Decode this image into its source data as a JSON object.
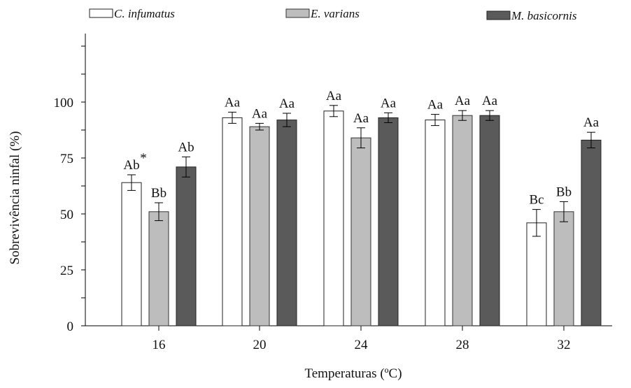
{
  "chart_data": {
    "type": "bar",
    "title": "",
    "xlabel": "Temperaturas (ºC)",
    "ylabel": "Sobrevivência ninfal (%)",
    "categories": [
      "16",
      "20",
      "24",
      "28",
      "32"
    ],
    "ylim": [
      0,
      100
    ],
    "yticks": [
      "0",
      "25",
      "50",
      "75",
      "100"
    ],
    "grid": false,
    "legend_position": "top",
    "series": [
      {
        "name": "C. infumatus",
        "color": "#ffffff",
        "values": [
          64,
          93,
          96,
          92,
          46
        ],
        "errors": [
          3.5,
          2.5,
          2.5,
          2.5,
          6
        ],
        "labels": [
          "Ab",
          "Aa",
          "Aa",
          "Aa",
          "Bc"
        ]
      },
      {
        "name": "E. varians",
        "color": "#bdbdbd",
        "values": [
          51,
          89,
          84,
          94,
          51
        ],
        "errors": [
          4,
          1.5,
          4.5,
          2.2,
          4.5
        ],
        "labels": [
          "Bb",
          "Aa",
          "Aa",
          "Aa",
          "Bb"
        ]
      },
      {
        "name": "M. basicornis",
        "color": "#5a5a5a",
        "values": [
          71,
          92,
          93,
          94,
          83
        ],
        "errors": [
          4.5,
          3,
          2.2,
          2.2,
          3.5
        ],
        "labels": [
          "Ab",
          "Aa",
          "Aa",
          "Aa",
          "Aa"
        ]
      }
    ],
    "annotations": [
      {
        "text": "*",
        "category": "16",
        "series": "C. infumatus"
      }
    ]
  }
}
